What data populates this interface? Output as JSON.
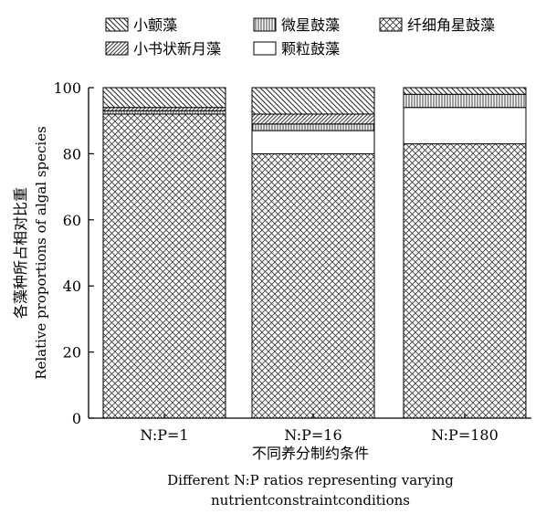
{
  "chart_data": {
    "type": "bar",
    "stacked": true,
    "categories": [
      "N:P=1",
      "N:P=16",
      "N:P=180"
    ],
    "series": [
      {
        "name": "纤细角星鼓藻",
        "pattern": "crosshatch",
        "values": [
          92,
          80,
          83
        ]
      },
      {
        "name": "颗粒鼓藻",
        "pattern": "blank",
        "values": [
          0,
          7,
          11
        ]
      },
      {
        "name": "微星鼓藻",
        "pattern": "vertical",
        "values": [
          1,
          2,
          4
        ]
      },
      {
        "name": "小书状新月藻",
        "pattern": "diagonal-fine",
        "values": [
          1,
          3,
          0
        ]
      },
      {
        "name": "小颤藻",
        "pattern": "diagonal-coarse",
        "values": [
          6,
          8,
          2
        ]
      }
    ],
    "legend_order": [
      "小颤藻",
      "微星鼓藻",
      "纤细角星鼓藻",
      "小书状新月藻",
      "颗粒鼓藻"
    ],
    "ylabel_cn": "各藻种所占相对比重",
    "ylabel_en": "Relative proportions of algal species",
    "xlabel_cn": "不同养分制约条件",
    "xlabel_en_line1": "Different N:P ratios representing varying",
    "xlabel_en_line2": "nutrientconstraintconditions",
    "ylim": [
      0,
      100
    ],
    "yticks": [
      0,
      20,
      40,
      60,
      80,
      100
    ],
    "legend_position": "top",
    "grid": false
  }
}
